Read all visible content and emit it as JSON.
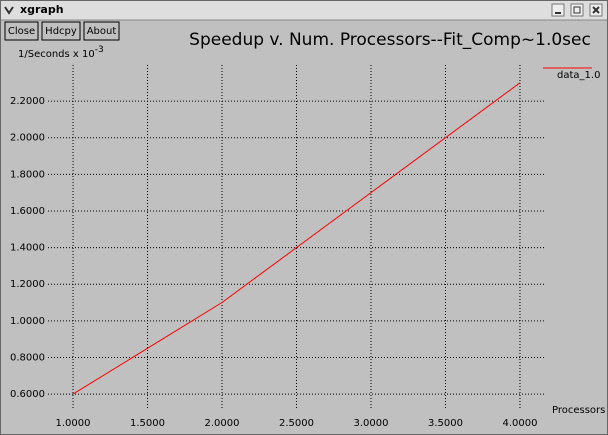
{
  "window": {
    "title": "xgraph",
    "buttons": [
      "Close",
      "Hdcpy",
      "About"
    ]
  },
  "chart_data": {
    "type": "line",
    "title": "Speedup v. Num. Processors--Fit_Comp~1.0sec",
    "y_label": "1/Seconds x 10",
    "y_label_exponent": "-3",
    "x_label": "Processors",
    "x": [
      1,
      2,
      3,
      4
    ],
    "series": [
      {
        "name": "data_1.0",
        "color": "#ff0000",
        "values": [
          0.6,
          1.1,
          1.7,
          2.3
        ]
      }
    ],
    "xlim": [
      0.832,
      4.168
    ],
    "ylim": [
      0.513,
      2.397
    ],
    "xticks": [
      {
        "value": 1,
        "label": "1.0000"
      },
      {
        "value": 1.5,
        "label": "1.5000"
      },
      {
        "value": 2,
        "label": "2.0000"
      },
      {
        "value": 2.5,
        "label": "2.5000"
      },
      {
        "value": 3,
        "label": "3.0000"
      },
      {
        "value": 3.5,
        "label": "3.5000"
      },
      {
        "value": 4,
        "label": "4.0000"
      }
    ],
    "yticks": [
      {
        "value": 0.6,
        "label": "0.6000"
      },
      {
        "value": 0.8,
        "label": "0.8000"
      },
      {
        "value": 1,
        "label": "1.0000"
      },
      {
        "value": 1.2,
        "label": "1.2000"
      },
      {
        "value": 1.4,
        "label": "1.4000"
      },
      {
        "value": 1.6,
        "label": "1.6000"
      },
      {
        "value": 1.8,
        "label": "1.8000"
      },
      {
        "value": 2,
        "label": "2.0000"
      },
      {
        "value": 2.2,
        "label": "2.2000"
      }
    ],
    "grid": true
  }
}
